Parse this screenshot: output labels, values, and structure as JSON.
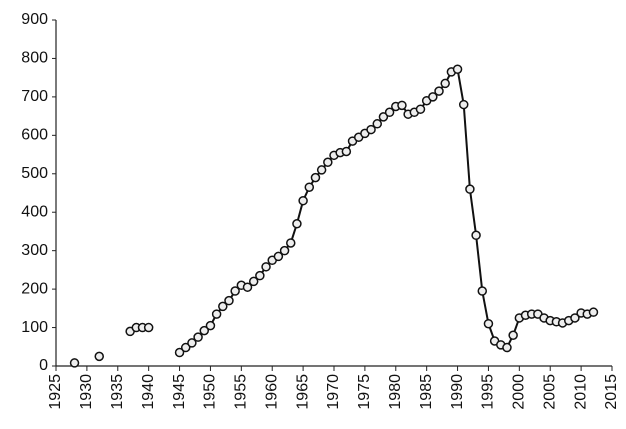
{
  "chart_data": {
    "type": "line",
    "x": [
      1928,
      1929,
      1930,
      1931,
      1932,
      1933,
      1934,
      1935,
      1936,
      1937,
      1938,
      1939,
      1940,
      1941,
      1942,
      1943,
      1944,
      1945,
      1946,
      1947,
      1948,
      1949,
      1950,
      1951,
      1952,
      1953,
      1954,
      1955,
      1956,
      1957,
      1958,
      1959,
      1960,
      1961,
      1962,
      1963,
      1964,
      1965,
      1966,
      1967,
      1968,
      1969,
      1970,
      1971,
      1972,
      1973,
      1974,
      1975,
      1976,
      1977,
      1978,
      1979,
      1980,
      1981,
      1982,
      1983,
      1984,
      1985,
      1986,
      1987,
      1988,
      1989,
      1990,
      1991,
      1992,
      1993,
      1994,
      1995,
      1996,
      1997,
      1998,
      1999,
      2000,
      2001,
      2002,
      2003,
      2004,
      2005,
      2006,
      2007,
      2008,
      2009,
      2010,
      2011,
      2012
    ],
    "values": [
      8,
      null,
      null,
      null,
      25,
      null,
      null,
      null,
      null,
      90,
      100,
      100,
      100,
      null,
      null,
      null,
      null,
      35,
      48,
      60,
      75,
      92,
      105,
      135,
      155,
      170,
      195,
      210,
      205,
      220,
      235,
      258,
      275,
      285,
      300,
      320,
      370,
      430,
      465,
      490,
      510,
      530,
      548,
      555,
      558,
      585,
      595,
      605,
      615,
      630,
      648,
      660,
      675,
      678,
      655,
      660,
      668,
      690,
      700,
      715,
      735,
      765,
      772,
      680,
      460,
      340,
      195,
      110,
      65,
      55,
      48,
      80,
      125,
      132,
      135,
      135,
      125,
      118,
      115,
      112,
      118,
      125,
      138,
      135,
      140
    ],
    "color": "#111111",
    "xlim": [
      1925,
      2015
    ],
    "xticks": [
      1925,
      1930,
      1935,
      1940,
      1945,
      1950,
      1955,
      1960,
      1965,
      1970,
      1975,
      1980,
      1985,
      1990,
      1995,
      2000,
      2005,
      2010,
      2015
    ],
    "ylim": [
      0,
      900
    ],
    "yticks": [
      0,
      100,
      200,
      300,
      400,
      500,
      600,
      700,
      800,
      900
    ],
    "grid": false
  }
}
